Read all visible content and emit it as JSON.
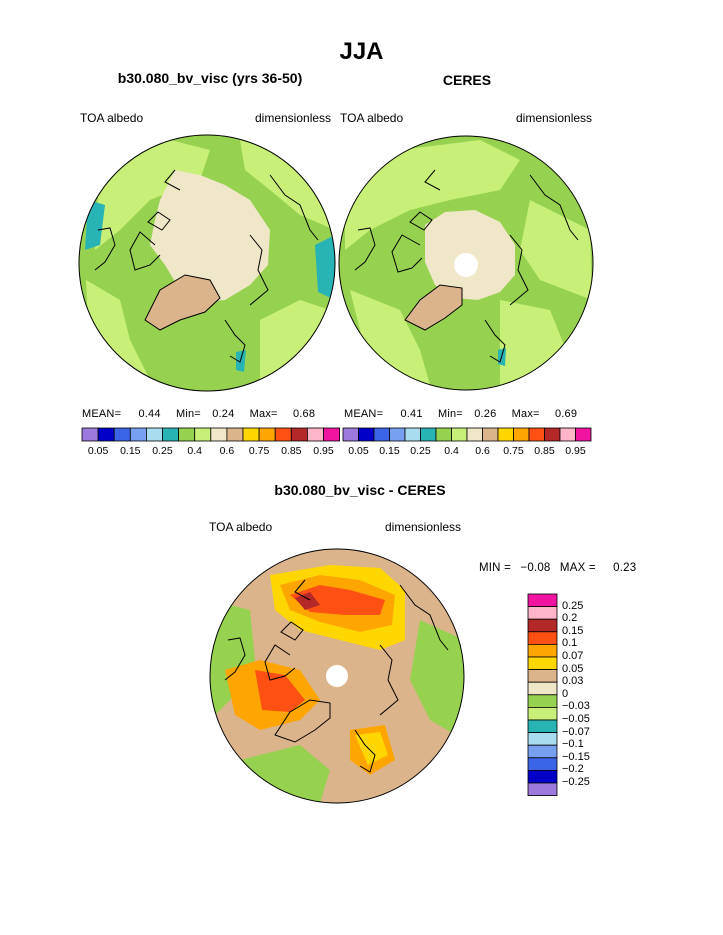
{
  "figure": {
    "title": "JJA"
  },
  "panels": [
    {
      "id": "model",
      "title": "b30.080_bv_visc (yrs 36-50)",
      "left_label": "TOA albedo",
      "right_label": "dimensionless",
      "stats": {
        "mean_label": "MEAN=",
        "mean": "0.44",
        "min_label": "Min=",
        "min": "0.24",
        "max_label": "Max=",
        "max": "0.68"
      }
    },
    {
      "id": "obs",
      "title": "CERES",
      "left_label": "TOA albedo",
      "right_label": "dimensionless",
      "stats": {
        "mean_label": "MEAN=",
        "mean": "0.41",
        "min_label": "Min=",
        "min": "0.26",
        "max_label": "Max=",
        "max": "0.69"
      }
    }
  ],
  "difference": {
    "title": "b30.080_bv_visc - CERES",
    "left_label": "TOA albedo",
    "right_label": "dimensionless",
    "min_label": "MIN =",
    "min": "−0.08",
    "max_label": "MAX =",
    "max": "0.23"
  },
  "colorbar_abs": {
    "colors": [
      "#9c79dc",
      "#0000c8",
      "#3c64e6",
      "#78a0f0",
      "#aadcf0",
      "#28b4b4",
      "#96d250",
      "#c8f078",
      "#f0e6c8",
      "#dcb48c",
      "#ffd700",
      "#ffa500",
      "#ff5014",
      "#b42828",
      "#ffb4c8",
      "#f014a0"
    ],
    "labels": [
      "0.05",
      "0.15",
      "0.25",
      "0.4",
      "0.6",
      "0.75",
      "0.85",
      "0.95"
    ]
  },
  "colorbar_diff": {
    "colors": [
      "#f014a0",
      "#ffb4c8",
      "#b42828",
      "#ff5014",
      "#ffa500",
      "#ffd700",
      "#dcb48c",
      "#f0e6c8",
      "#96d250",
      "#c8f078",
      "#28b4b4",
      "#aadcf0",
      "#78a0f0",
      "#3c64e6",
      "#0000c8",
      "#9c79dc"
    ],
    "labels": [
      "0.25",
      "0.2",
      "0.15",
      "0.1",
      "0.07",
      "0.05",
      "0.03",
      "0",
      "−0.03",
      "−0.05",
      "−0.07",
      "−0.1",
      "−0.15",
      "−0.2",
      "−0.25"
    ]
  },
  "map_colors": {
    "ocean_green": "#96d250",
    "land_light_green": "#c8f078",
    "ice_cream": "#f0e6c8",
    "greenland_tan": "#dcb48c",
    "teal": "#28b4b4",
    "pole_hole": "#ffffff",
    "diff_tan": "#dcb48c",
    "diff_orange": "#ffa500",
    "diff_yellow": "#ffd700",
    "diff_red": "#ff5014",
    "diff_darkred": "#b42828"
  }
}
